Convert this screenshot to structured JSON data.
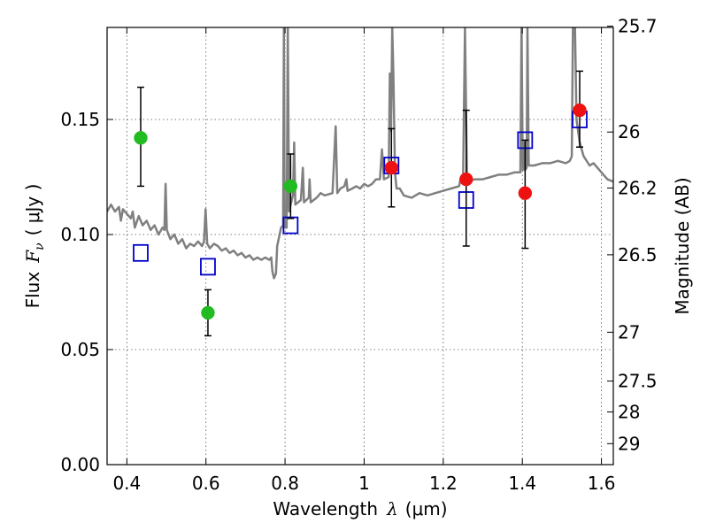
{
  "chart_data": {
    "type": "scatter",
    "xlabel_prefix": "Wavelength",
    "xlabel_symbol": "λ",
    "xlabel_unit": "(μm)",
    "ylabel_prefix": "Flux",
    "ylabel_symbol": "F",
    "ylabel_subscript": "ν",
    "ylabel_unit": "( μJy )",
    "y2label": "Magnitude (AB)",
    "xlim": [
      0.35,
      1.63
    ],
    "ylim": [
      0.0,
      0.19
    ],
    "xticks": [
      {
        "v": 0.4,
        "label": "0.4"
      },
      {
        "v": 0.6,
        "label": "0.6"
      },
      {
        "v": 0.8,
        "label": "0.8"
      },
      {
        "v": 1.0,
        "label": "1"
      },
      {
        "v": 1.2,
        "label": "1.2"
      },
      {
        "v": 1.4,
        "label": "1.4"
      },
      {
        "v": 1.6,
        "label": "1.6"
      }
    ],
    "yticks": [
      {
        "v": 0.0,
        "label": "0.00"
      },
      {
        "v": 0.05,
        "label": "0.05"
      },
      {
        "v": 0.1,
        "label": "0.10"
      },
      {
        "v": 0.15,
        "label": "0.15"
      }
    ],
    "mag_ticks": [
      {
        "mag": 25.7,
        "label": "25.7"
      },
      {
        "mag": 26.0,
        "label": "26"
      },
      {
        "mag": 26.2,
        "label": "26.2"
      },
      {
        "mag": 26.5,
        "label": "26.5"
      },
      {
        "mag": 27.0,
        "label": "27"
      },
      {
        "mag": 27.5,
        "label": "27.5"
      },
      {
        "mag": 28.0,
        "label": "28"
      },
      {
        "mag": 29.0,
        "label": "29"
      }
    ],
    "grid": true,
    "colors": {
      "spectrum": "#808080",
      "green": "#22bb22",
      "red": "#ee1111",
      "model_box": "#0000cc",
      "errorbar": "#000000"
    },
    "series": [
      {
        "name": "green_points",
        "marker": "circle",
        "points": [
          {
            "x": 0.435,
            "y": 0.142,
            "ylo": 0.121,
            "yhi": 0.164
          },
          {
            "x": 0.605,
            "y": 0.066,
            "ylo": 0.056,
            "yhi": 0.076
          },
          {
            "x": 0.814,
            "y": 0.121,
            "ylo": 0.107,
            "yhi": 0.135
          }
        ]
      },
      {
        "name": "red_points",
        "marker": "circle",
        "points": [
          {
            "x": 1.069,
            "y": 0.129,
            "ylo": 0.112,
            "yhi": 0.146
          },
          {
            "x": 1.258,
            "y": 0.124,
            "ylo": 0.095,
            "yhi": 0.154
          },
          {
            "x": 1.407,
            "y": 0.118,
            "ylo": 0.094,
            "yhi": 0.141
          },
          {
            "x": 1.545,
            "y": 0.154,
            "ylo": 0.138,
            "yhi": 0.171
          }
        ]
      },
      {
        "name": "model_boxes",
        "marker": "square-open",
        "points": [
          {
            "x": 0.435,
            "y": 0.092
          },
          {
            "x": 0.605,
            "y": 0.086
          },
          {
            "x": 0.814,
            "y": 0.104
          },
          {
            "x": 1.069,
            "y": 0.13
          },
          {
            "x": 1.258,
            "y": 0.115
          },
          {
            "x": 1.407,
            "y": 0.141
          },
          {
            "x": 1.545,
            "y": 0.15
          }
        ]
      }
    ],
    "spectrum": [
      [
        0.35,
        0.11
      ],
      [
        0.36,
        0.113
      ],
      [
        0.37,
        0.11
      ],
      [
        0.38,
        0.112
      ],
      [
        0.385,
        0.106
      ],
      [
        0.39,
        0.111
      ],
      [
        0.4,
        0.109
      ],
      [
        0.41,
        0.107
      ],
      [
        0.415,
        0.11
      ],
      [
        0.42,
        0.103
      ],
      [
        0.43,
        0.108
      ],
      [
        0.44,
        0.104
      ],
      [
        0.45,
        0.106
      ],
      [
        0.46,
        0.102
      ],
      [
        0.47,
        0.104
      ],
      [
        0.48,
        0.1
      ],
      [
        0.49,
        0.103
      ],
      [
        0.495,
        0.102
      ],
      [
        0.498,
        0.122
      ],
      [
        0.501,
        0.102
      ],
      [
        0.51,
        0.098
      ],
      [
        0.52,
        0.1
      ],
      [
        0.53,
        0.096
      ],
      [
        0.54,
        0.098
      ],
      [
        0.55,
        0.094
      ],
      [
        0.56,
        0.096
      ],
      [
        0.57,
        0.095
      ],
      [
        0.58,
        0.097
      ],
      [
        0.59,
        0.095
      ],
      [
        0.595,
        0.097
      ],
      [
        0.599,
        0.111
      ],
      [
        0.603,
        0.096
      ],
      [
        0.61,
        0.094
      ],
      [
        0.62,
        0.096
      ],
      [
        0.63,
        0.095
      ],
      [
        0.64,
        0.093
      ],
      [
        0.65,
        0.094
      ],
      [
        0.66,
        0.092
      ],
      [
        0.67,
        0.093
      ],
      [
        0.68,
        0.091
      ],
      [
        0.69,
        0.092
      ],
      [
        0.7,
        0.09
      ],
      [
        0.71,
        0.091
      ],
      [
        0.72,
        0.089
      ],
      [
        0.73,
        0.09
      ],
      [
        0.74,
        0.089
      ],
      [
        0.75,
        0.09
      ],
      [
        0.76,
        0.089
      ],
      [
        0.765,
        0.09
      ],
      [
        0.768,
        0.084
      ],
      [
        0.772,
        0.081
      ],
      [
        0.777,
        0.083
      ],
      [
        0.78,
        0.095
      ],
      [
        0.79,
        0.103
      ],
      [
        0.795,
        0.104
      ],
      [
        0.797,
        0.19
      ],
      [
        0.799,
        0.103
      ],
      [
        0.804,
        0.103
      ],
      [
        0.807,
        0.19
      ],
      [
        0.81,
        0.11
      ],
      [
        0.82,
        0.117
      ],
      [
        0.823,
        0.14
      ],
      [
        0.826,
        0.113
      ],
      [
        0.84,
        0.115
      ],
      [
        0.845,
        0.129
      ],
      [
        0.848,
        0.114
      ],
      [
        0.86,
        0.116
      ],
      [
        0.862,
        0.124
      ],
      [
        0.865,
        0.114
      ],
      [
        0.88,
        0.116
      ],
      [
        0.89,
        0.118
      ],
      [
        0.9,
        0.117
      ],
      [
        0.92,
        0.118
      ],
      [
        0.928,
        0.147
      ],
      [
        0.932,
        0.118
      ],
      [
        0.94,
        0.12
      ],
      [
        0.95,
        0.121
      ],
      [
        0.955,
        0.124
      ],
      [
        0.958,
        0.119
      ],
      [
        0.97,
        0.12
      ],
      [
        0.98,
        0.121
      ],
      [
        0.99,
        0.12
      ],
      [
        1.0,
        0.122
      ],
      [
        1.01,
        0.121
      ],
      [
        1.02,
        0.122
      ],
      [
        1.03,
        0.124
      ],
      [
        1.04,
        0.124
      ],
      [
        1.045,
        0.137
      ],
      [
        1.05,
        0.124
      ],
      [
        1.062,
        0.125
      ],
      [
        1.065,
        0.17
      ],
      [
        1.068,
        0.145
      ],
      [
        1.071,
        0.19
      ],
      [
        1.074,
        0.17
      ],
      [
        1.078,
        0.127
      ],
      [
        1.082,
        0.12
      ],
      [
        1.09,
        0.12
      ],
      [
        1.1,
        0.117
      ],
      [
        1.12,
        0.116
      ],
      [
        1.14,
        0.118
      ],
      [
        1.16,
        0.117
      ],
      [
        1.18,
        0.118
      ],
      [
        1.2,
        0.119
      ],
      [
        1.22,
        0.12
      ],
      [
        1.24,
        0.121
      ],
      [
        1.245,
        0.125
      ],
      [
        1.25,
        0.122
      ],
      [
        1.255,
        0.19
      ],
      [
        1.26,
        0.123
      ],
      [
        1.28,
        0.124
      ],
      [
        1.3,
        0.124
      ],
      [
        1.32,
        0.125
      ],
      [
        1.34,
        0.126
      ],
      [
        1.36,
        0.126
      ],
      [
        1.38,
        0.127
      ],
      [
        1.395,
        0.127
      ],
      [
        1.398,
        0.19
      ],
      [
        1.401,
        0.128
      ],
      [
        1.404,
        0.14
      ],
      [
        1.407,
        0.128
      ],
      [
        1.411,
        0.129
      ],
      [
        1.413,
        0.19
      ],
      [
        1.416,
        0.13
      ],
      [
        1.43,
        0.13
      ],
      [
        1.45,
        0.131
      ],
      [
        1.47,
        0.131
      ],
      [
        1.49,
        0.132
      ],
      [
        1.51,
        0.131
      ],
      [
        1.52,
        0.132
      ],
      [
        1.525,
        0.134
      ],
      [
        1.528,
        0.19
      ],
      [
        1.533,
        0.19
      ],
      [
        1.537,
        0.15
      ],
      [
        1.545,
        0.14
      ],
      [
        1.555,
        0.134
      ],
      [
        1.57,
        0.13
      ],
      [
        1.58,
        0.131
      ],
      [
        1.6,
        0.127
      ],
      [
        1.615,
        0.124
      ],
      [
        1.63,
        0.123
      ]
    ]
  }
}
